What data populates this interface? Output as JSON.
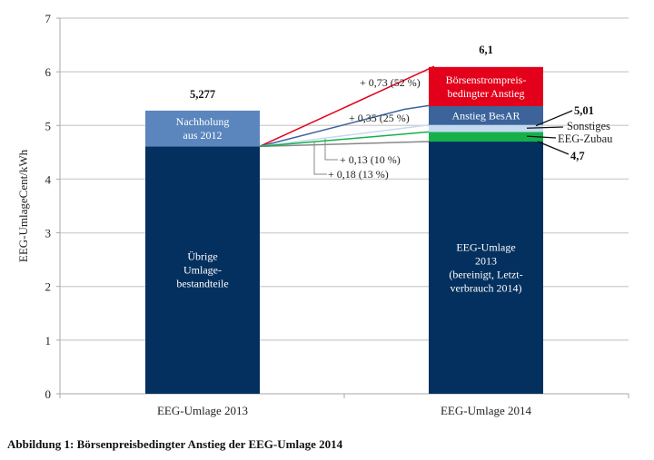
{
  "chart_data": {
    "type": "bar",
    "stacked": true,
    "title": "",
    "xlabel": "",
    "ylabel": "EEG-UmlageCent/kWh",
    "ylim": [
      0,
      7
    ],
    "yticks": [
      0,
      1,
      2,
      3,
      4,
      5,
      6,
      7
    ],
    "grid": true,
    "categories": [
      "EEG-Umlage 2013",
      "EEG-Umlage 2014"
    ],
    "bars": [
      {
        "category": "EEG-Umlage 2013",
        "total_label": "5,277",
        "total": 5.277,
        "segments": [
          {
            "name": "Übrige Umlagebestandteile",
            "label_lines": [
              "Übrige",
              "Umlage-",
              "bestandteile"
            ],
            "value": 4.61,
            "color": "#04305f"
          },
          {
            "name": "Nachholung aus 2012",
            "label_lines": [
              "Nachholung",
              "aus 2012"
            ],
            "value": 0.667,
            "color": "#5b86bd"
          }
        ]
      },
      {
        "category": "EEG-Umlage 2014",
        "total_label": "6,1",
        "total": 6.1,
        "segments": [
          {
            "name": "EEG-Umlage 2013 (bereinigt, Letztverbrauch 2014)",
            "label_lines": [
              "EEG-Umlage",
              "2013",
              "(bereinigt, Letzt-",
              "verbrauch 2014)"
            ],
            "value": 4.7,
            "color": "#04305f"
          },
          {
            "name": "EEG-Zubau",
            "label_lines": [],
            "value": 0.18,
            "color": "#16b04b"
          },
          {
            "name": "Sonstiges",
            "label_lines": [],
            "value": 0.13,
            "color": "#c5daf1"
          },
          {
            "name": "Anstieg BesAR",
            "label_lines": [
              "Anstieg BesAR"
            ],
            "value": 0.35,
            "color": "#3c649b"
          },
          {
            "name": "Börsenstrompreisbedingter Anstieg",
            "label_lines": [
              "Börsenstrompreis-",
              "bedingter Anstieg"
            ],
            "value": 0.73,
            "color": "#e3001b"
          }
        ]
      }
    ],
    "increments": [
      {
        "label": "+ 0,73 (52 %)",
        "value": 0.73,
        "percent": 52,
        "color": "#e3001b",
        "to_level": 6.1
      },
      {
        "label": "+ 0,35 (25 %)",
        "value": 0.35,
        "percent": 25,
        "color": "#3c649b",
        "to_level": 5.37
      },
      {
        "label": "+ 0,13 (10 %)",
        "value": 0.13,
        "percent": 10,
        "color": "#c5daf1",
        "to_level": 5.01
      },
      {
        "label": "+ 0,18 (13 %)",
        "value": 0.18,
        "percent": 13,
        "color": "#16b04b",
        "to_level": 4.88
      }
    ],
    "side_labels": [
      {
        "text": "5,01",
        "bold": true,
        "level": 5.01
      },
      {
        "text": "Sonstiges",
        "bold": false
      },
      {
        "text": "EEG-Zubau",
        "bold": false
      },
      {
        "text": "4,7",
        "bold": true,
        "level": 4.7
      }
    ]
  },
  "caption": "Abbildung 1: Börsenpreisbedingter Anstieg der EEG-Umlage 2014"
}
